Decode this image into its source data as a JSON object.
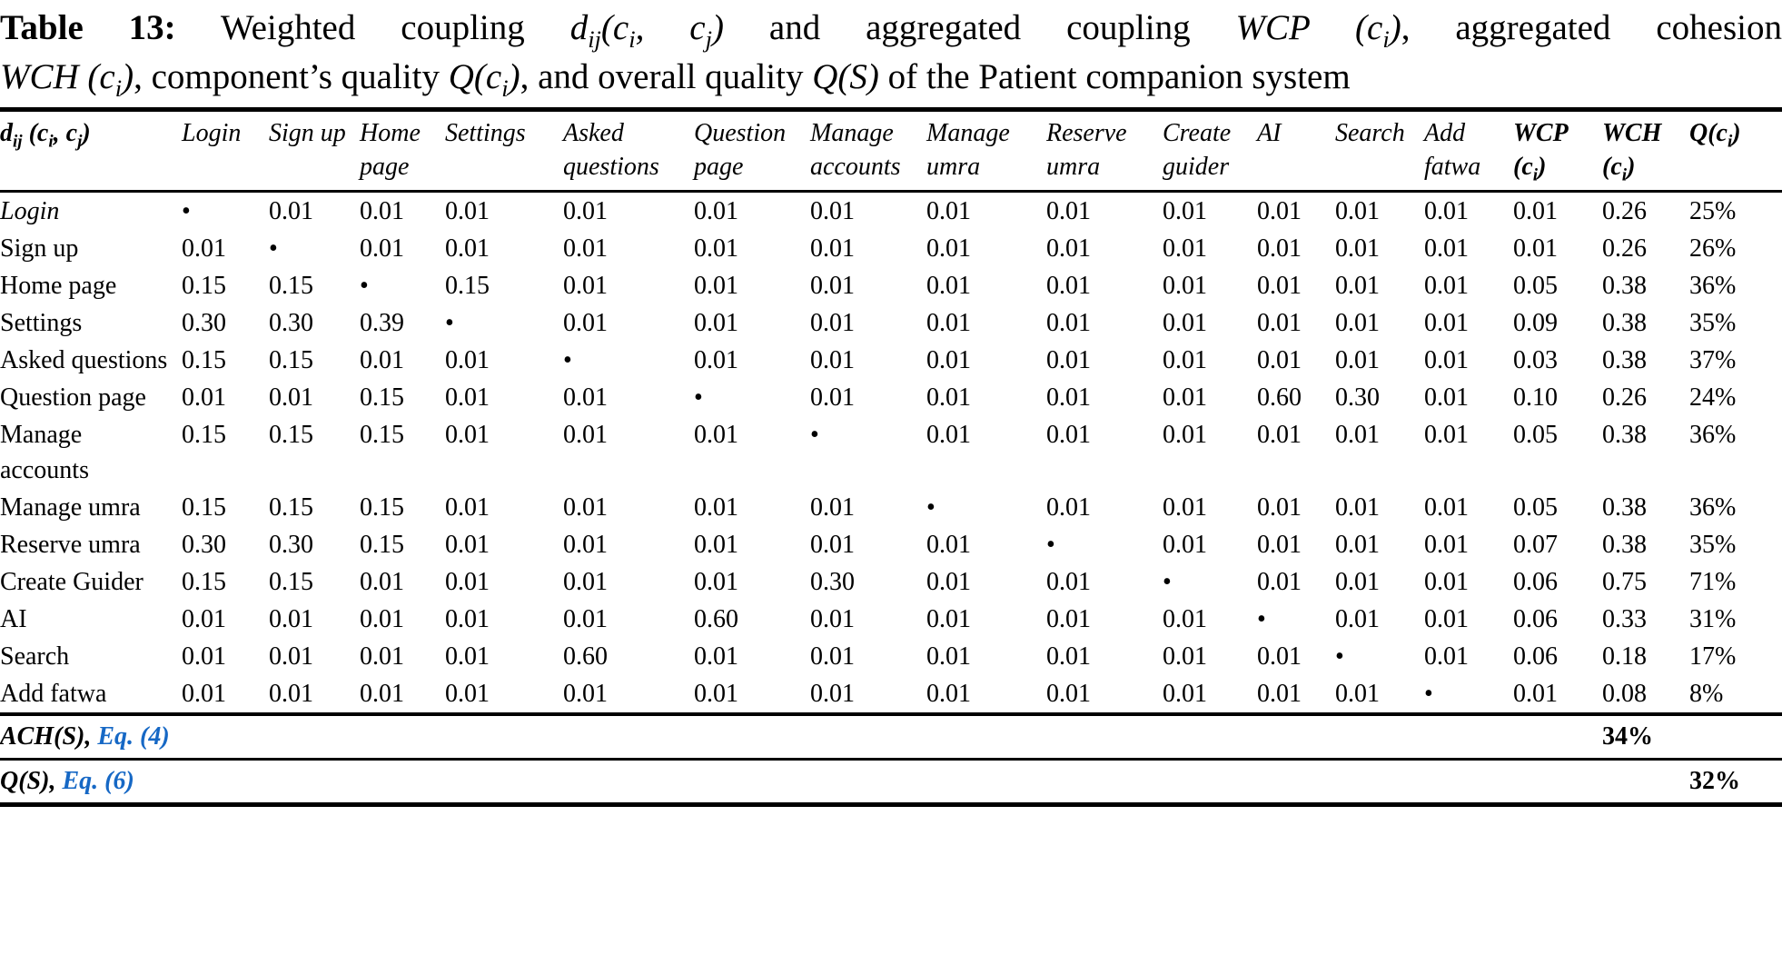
{
  "colors": {
    "link_blue": "#1668c5",
    "text": "#000000",
    "background": "#ffffff"
  },
  "caption": {
    "line1": [
      {
        "t": "Table 13:",
        "c": "b"
      },
      {
        "t": " Weighted coupling ",
        "c": ""
      },
      {
        "t": "d",
        "c": "i"
      },
      {
        "t": "ij",
        "c": "i s"
      },
      {
        "t": "(",
        "c": "i"
      },
      {
        "t": "c",
        "c": "i"
      },
      {
        "t": "i",
        "c": "i s"
      },
      {
        "t": ", ",
        "c": "i"
      },
      {
        "t": "c",
        "c": "i"
      },
      {
        "t": "j",
        "c": "i s"
      },
      {
        "t": ")",
        "c": "i"
      },
      {
        "t": " and aggregated coupling ",
        "c": ""
      },
      {
        "t": "WCP",
        "c": "i"
      },
      {
        "t": " (",
        "c": "i"
      },
      {
        "t": "c",
        "c": "i"
      },
      {
        "t": "i",
        "c": "i s"
      },
      {
        "t": ")",
        "c": "i"
      },
      {
        "t": ", aggregated cohesion",
        "c": ""
      }
    ],
    "line2": [
      {
        "t": "WCH",
        "c": "i"
      },
      {
        "t": " (",
        "c": "i"
      },
      {
        "t": "c",
        "c": "i"
      },
      {
        "t": "i",
        "c": "i s"
      },
      {
        "t": ")",
        "c": "i"
      },
      {
        "t": ", component’s quality ",
        "c": ""
      },
      {
        "t": "Q(",
        "c": "i"
      },
      {
        "t": "c",
        "c": "i"
      },
      {
        "t": "i",
        "c": "i s"
      },
      {
        "t": ")",
        "c": "i"
      },
      {
        "t": ", and overall quality ",
        "c": ""
      },
      {
        "t": "Q(S)",
        "c": "i"
      },
      {
        "t": " of the Patient companion system",
        "c": ""
      }
    ]
  },
  "table": {
    "corner_header": [
      {
        "t": "d",
        "c": "bi"
      },
      {
        "t": "ij",
        "c": "bi s"
      },
      {
        "t": " (",
        "c": "bi"
      },
      {
        "t": "c",
        "c": "bi"
      },
      {
        "t": "i",
        "c": "bi s"
      },
      {
        "t": ", ",
        "c": "bi"
      },
      {
        "t": "c",
        "c": "bi"
      },
      {
        "t": "j",
        "c": "bi s"
      },
      {
        "t": ")",
        "c": "bi"
      }
    ],
    "component_columns": [
      "Login",
      "Sign up",
      "Home page",
      "Settings",
      "Asked questions",
      "Question page",
      "Manage accounts",
      "Manage umra",
      "Reserve umra",
      "Create guider",
      "AI",
      "Search",
      "Add fatwa"
    ],
    "agg_headers": {
      "wcp": [
        {
          "t": "WCP ",
          "c": "bi"
        },
        {
          "t": "(",
          "c": "bi"
        },
        {
          "t": "c",
          "c": "bi"
        },
        {
          "t": "i",
          "c": "bi s"
        },
        {
          "t": ")",
          "c": "bi"
        }
      ],
      "wch": [
        {
          "t": "WCH ",
          "c": "bi"
        },
        {
          "t": "(",
          "c": "bi"
        },
        {
          "t": "c",
          "c": "bi"
        },
        {
          "t": "i",
          "c": "bi s"
        },
        {
          "t": ")",
          "c": "bi"
        }
      ],
      "q": [
        {
          "t": "Q(",
          "c": "bi"
        },
        {
          "t": "c",
          "c": "bi"
        },
        {
          "t": "i",
          "c": "bi s"
        },
        {
          "t": ")",
          "c": "bi"
        }
      ]
    },
    "diagonal_marker": "•",
    "rows": [
      {
        "label": "Login",
        "italic": true,
        "cells": [
          "•",
          "0.01",
          "0.01",
          "0.01",
          "0.01",
          "0.01",
          "0.01",
          "0.01",
          "0.01",
          "0.01",
          "0.01",
          "0.01",
          "0.01"
        ],
        "wcp": "0.01",
        "wch": "0.26",
        "q": "25%"
      },
      {
        "label": "Sign up",
        "italic": false,
        "cells": [
          "0.01",
          "•",
          "0.01",
          "0.01",
          "0.01",
          "0.01",
          "0.01",
          "0.01",
          "0.01",
          "0.01",
          "0.01",
          "0.01",
          "0.01"
        ],
        "wcp": "0.01",
        "wch": "0.26",
        "q": "26%"
      },
      {
        "label": "Home page",
        "italic": false,
        "cells": [
          "0.15",
          "0.15",
          "•",
          "0.15",
          "0.01",
          "0.01",
          "0.01",
          "0.01",
          "0.01",
          "0.01",
          "0.01",
          "0.01",
          "0.01"
        ],
        "wcp": "0.05",
        "wch": "0.38",
        "q": "36%"
      },
      {
        "label": "Settings",
        "italic": false,
        "cells": [
          "0.30",
          "0.30",
          "0.39",
          "•",
          "0.01",
          "0.01",
          "0.01",
          "0.01",
          "0.01",
          "0.01",
          "0.01",
          "0.01",
          "0.01"
        ],
        "wcp": "0.09",
        "wch": "0.38",
        "q": "35%"
      },
      {
        "label": "Asked questions",
        "italic": false,
        "cells": [
          "0.15",
          "0.15",
          "0.01",
          "0.01",
          "•",
          "0.01",
          "0.01",
          "0.01",
          "0.01",
          "0.01",
          "0.01",
          "0.01",
          "0.01"
        ],
        "wcp": "0.03",
        "wch": "0.38",
        "q": "37%"
      },
      {
        "label": "Question page",
        "italic": false,
        "cells": [
          "0.01",
          "0.01",
          "0.15",
          "0.01",
          "0.01",
          "•",
          "0.01",
          "0.01",
          "0.01",
          "0.01",
          "0.60",
          "0.30",
          "0.01"
        ],
        "wcp": "0.10",
        "wch": "0.26",
        "q": "24%"
      },
      {
        "label": "Manage accounts",
        "italic": false,
        "cells": [
          "0.15",
          "0.15",
          "0.15",
          "0.01",
          "0.01",
          "0.01",
          "•",
          "0.01",
          "0.01",
          "0.01",
          "0.01",
          "0.01",
          "0.01"
        ],
        "wcp": "0.05",
        "wch": "0.38",
        "q": "36%"
      },
      {
        "label": "Manage umra",
        "italic": false,
        "cells": [
          "0.15",
          "0.15",
          "0.15",
          "0.01",
          "0.01",
          "0.01",
          "0.01",
          "•",
          "0.01",
          "0.01",
          "0.01",
          "0.01",
          "0.01"
        ],
        "wcp": "0.05",
        "wch": "0.38",
        "q": "36%"
      },
      {
        "label": "Reserve umra",
        "italic": false,
        "cells": [
          "0.30",
          "0.30",
          "0.15",
          "0.01",
          "0.01",
          "0.01",
          "0.01",
          "0.01",
          "•",
          "0.01",
          "0.01",
          "0.01",
          "0.01"
        ],
        "wcp": "0.07",
        "wch": "0.38",
        "q": "35%"
      },
      {
        "label": "Create Guider",
        "italic": false,
        "cells": [
          "0.15",
          "0.15",
          "0.01",
          "0.01",
          "0.01",
          "0.01",
          "0.30",
          "0.01",
          "0.01",
          "•",
          "0.01",
          "0.01",
          "0.01"
        ],
        "wcp": "0.06",
        "wch": "0.75",
        "q": "71%"
      },
      {
        "label": "AI",
        "italic": false,
        "cells": [
          "0.01",
          "0.01",
          "0.01",
          "0.01",
          "0.01",
          "0.60",
          "0.01",
          "0.01",
          "0.01",
          "0.01",
          "•",
          "0.01",
          "0.01"
        ],
        "wcp": "0.06",
        "wch": "0.33",
        "q": "31%"
      },
      {
        "label": "Search",
        "italic": false,
        "cells": [
          "0.01",
          "0.01",
          "0.01",
          "0.01",
          "0.60",
          "0.01",
          "0.01",
          "0.01",
          "0.01",
          "0.01",
          "0.01",
          "•",
          "0.01"
        ],
        "wcp": "0.06",
        "wch": "0.18",
        "q": "17%"
      },
      {
        "label": "Add fatwa",
        "italic": false,
        "cells": [
          "0.01",
          "0.01",
          "0.01",
          "0.01",
          "0.01",
          "0.01",
          "0.01",
          "0.01",
          "0.01",
          "0.01",
          "0.01",
          "0.01",
          "•"
        ],
        "wcp": "0.01",
        "wch": "0.08",
        "q": "8%"
      }
    ],
    "footer_rows": [
      {
        "label": "ACH(S),",
        "link": "Eq. (4)",
        "value": "34%",
        "value_col": "wch"
      },
      {
        "label": "Q(S),",
        "link": "Eq. (6)",
        "value": "32%",
        "value_col": "q"
      }
    ]
  }
}
